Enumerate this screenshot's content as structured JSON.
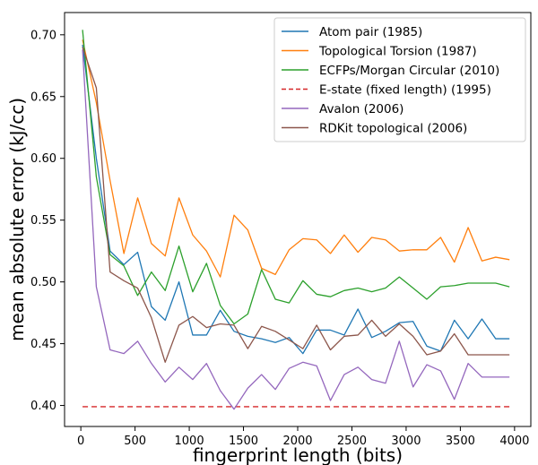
{
  "chart_data": {
    "type": "line",
    "title": "",
    "xlabel": "fingerprint length (bits)",
    "ylabel": "mean absolute error (kJ/cc)",
    "xlim": [
      -150,
      4150
    ],
    "ylim": [
      0.383,
      0.718
    ],
    "xticks": [
      0,
      500,
      1000,
      1500,
      2000,
      2500,
      3000,
      3500,
      4000
    ],
    "yticks": [
      0.4,
      0.45,
      0.5,
      0.55,
      0.6,
      0.65,
      0.7
    ],
    "ytick_labels": [
      "0.40",
      "0.45",
      "0.50",
      "0.55",
      "0.60",
      "0.65",
      "0.70"
    ],
    "grid": false,
    "legend_position": "top-right",
    "x": [
      16,
      143,
      270,
      397,
      524,
      651,
      778,
      905,
      1032,
      1159,
      1286,
      1413,
      1540,
      1667,
      1794,
      1921,
      2048,
      2175,
      2302,
      2429,
      2556,
      2683,
      2810,
      2937,
      3064,
      3191,
      3318,
      3445,
      3572,
      3699,
      3826,
      3953
    ],
    "series": [
      {
        "name": "Atom pair (1985)",
        "color": "#1f77b4",
        "dash": "",
        "values": [
          0.692,
          0.6,
          0.525,
          0.514,
          0.524,
          0.48,
          0.469,
          0.5,
          0.457,
          0.457,
          0.477,
          0.46,
          0.456,
          0.454,
          0.451,
          0.455,
          0.442,
          0.461,
          0.461,
          0.457,
          0.478,
          0.455,
          0.46,
          0.467,
          0.468,
          0.448,
          0.444,
          0.469,
          0.454,
          0.47,
          0.454,
          0.454
        ]
      },
      {
        "name": "Topological Torsion (1987)",
        "color": "#ff7f0e",
        "dash": "",
        "values": [
          0.696,
          0.645,
          0.582,
          0.523,
          0.568,
          0.531,
          0.521,
          0.568,
          0.538,
          0.525,
          0.504,
          0.554,
          0.542,
          0.511,
          0.506,
          0.526,
          0.535,
          0.534,
          0.523,
          0.538,
          0.524,
          0.536,
          0.534,
          0.525,
          0.526,
          0.526,
          0.536,
          0.516,
          0.544,
          0.517,
          0.52,
          0.518
        ]
      },
      {
        "name": "ECFPs/Morgan Circular (2010)",
        "color": "#2ca02c",
        "dash": "",
        "values": [
          0.704,
          0.585,
          0.522,
          0.513,
          0.489,
          0.508,
          0.493,
          0.529,
          0.492,
          0.515,
          0.481,
          0.466,
          0.474,
          0.51,
          0.486,
          0.483,
          0.501,
          0.49,
          0.488,
          0.493,
          0.495,
          0.492,
          0.495,
          0.504,
          0.495,
          0.486,
          0.496,
          0.497,
          0.499,
          0.499,
          0.499,
          0.496
        ]
      },
      {
        "name": "E-state (fixed length) (1995)",
        "color": "#d62728",
        "dash": "6,4",
        "values": [
          0.399,
          0.399,
          0.399,
          0.399,
          0.399,
          0.399,
          0.399,
          0.399,
          0.399,
          0.399,
          0.399,
          0.399,
          0.399,
          0.399,
          0.399,
          0.399,
          0.399,
          0.399,
          0.399,
          0.399,
          0.399,
          0.399,
          0.399,
          0.399,
          0.399,
          0.399,
          0.399,
          0.399,
          0.399,
          0.399,
          0.399,
          0.399
        ]
      },
      {
        "name": "Avalon (2006)",
        "color": "#9467bd",
        "dash": "",
        "values": [
          0.688,
          0.496,
          0.445,
          0.442,
          0.452,
          0.434,
          0.419,
          0.431,
          0.421,
          0.434,
          0.412,
          0.397,
          0.414,
          0.425,
          0.413,
          0.43,
          0.435,
          0.432,
          0.404,
          0.425,
          0.431,
          0.421,
          0.418,
          0.452,
          0.415,
          0.433,
          0.428,
          0.405,
          0.434,
          0.423,
          0.423,
          0.423
        ]
      },
      {
        "name": "RDKit topological (2006)",
        "color": "#8c564b",
        "dash": "",
        "values": [
          0.69,
          0.657,
          0.508,
          0.501,
          0.495,
          0.471,
          0.435,
          0.465,
          0.472,
          0.463,
          0.466,
          0.465,
          0.446,
          0.464,
          0.46,
          0.453,
          0.446,
          0.465,
          0.445,
          0.456,
          0.457,
          0.469,
          0.456,
          0.466,
          0.456,
          0.441,
          0.444,
          0.458,
          0.441,
          0.441,
          0.441,
          0.441
        ]
      }
    ]
  }
}
